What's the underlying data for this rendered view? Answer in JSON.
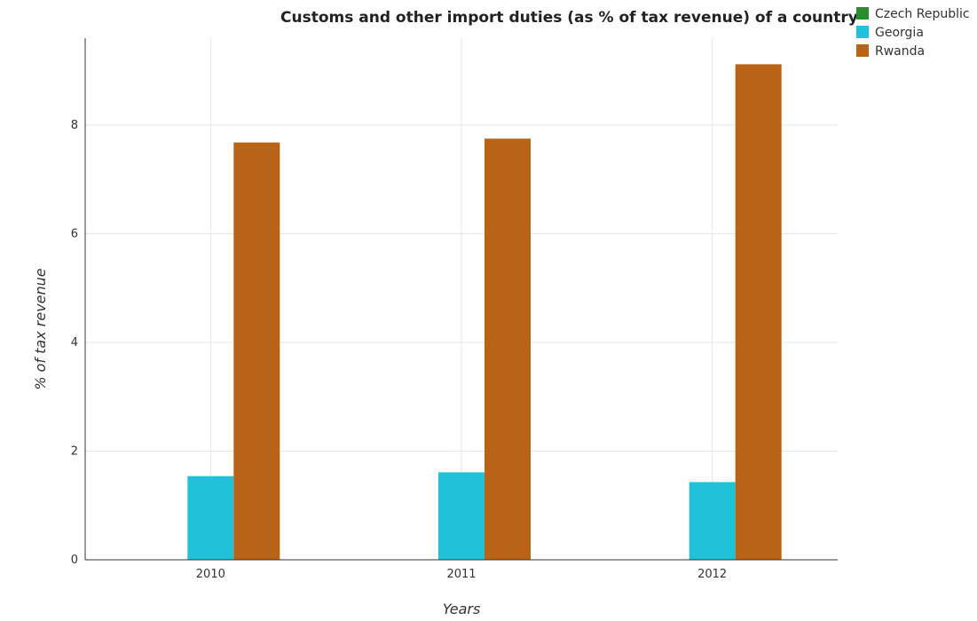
{
  "chart_data": {
    "type": "bar",
    "title": "Customs and other import duties (as % of tax revenue) of a country",
    "xlabel": "Years",
    "ylabel": "% of tax revenue",
    "categories": [
      "2010",
      "2011",
      "2012"
    ],
    "series": [
      {
        "name": "Czech Republic",
        "color": "#2e8b2e",
        "values": [
          0.0,
          0.0,
          0.0
        ]
      },
      {
        "name": "Georgia",
        "color": "#1fc2d9",
        "values": [
          1.54,
          1.61,
          1.43
        ]
      },
      {
        "name": "Rwanda",
        "color": "#b86316",
        "values": [
          7.68,
          7.75,
          9.12
        ]
      }
    ],
    "ylim": [
      0,
      9.6
    ],
    "yticks": [
      0,
      2,
      4,
      6,
      8
    ],
    "grid": true,
    "legend_position": "top-right"
  }
}
